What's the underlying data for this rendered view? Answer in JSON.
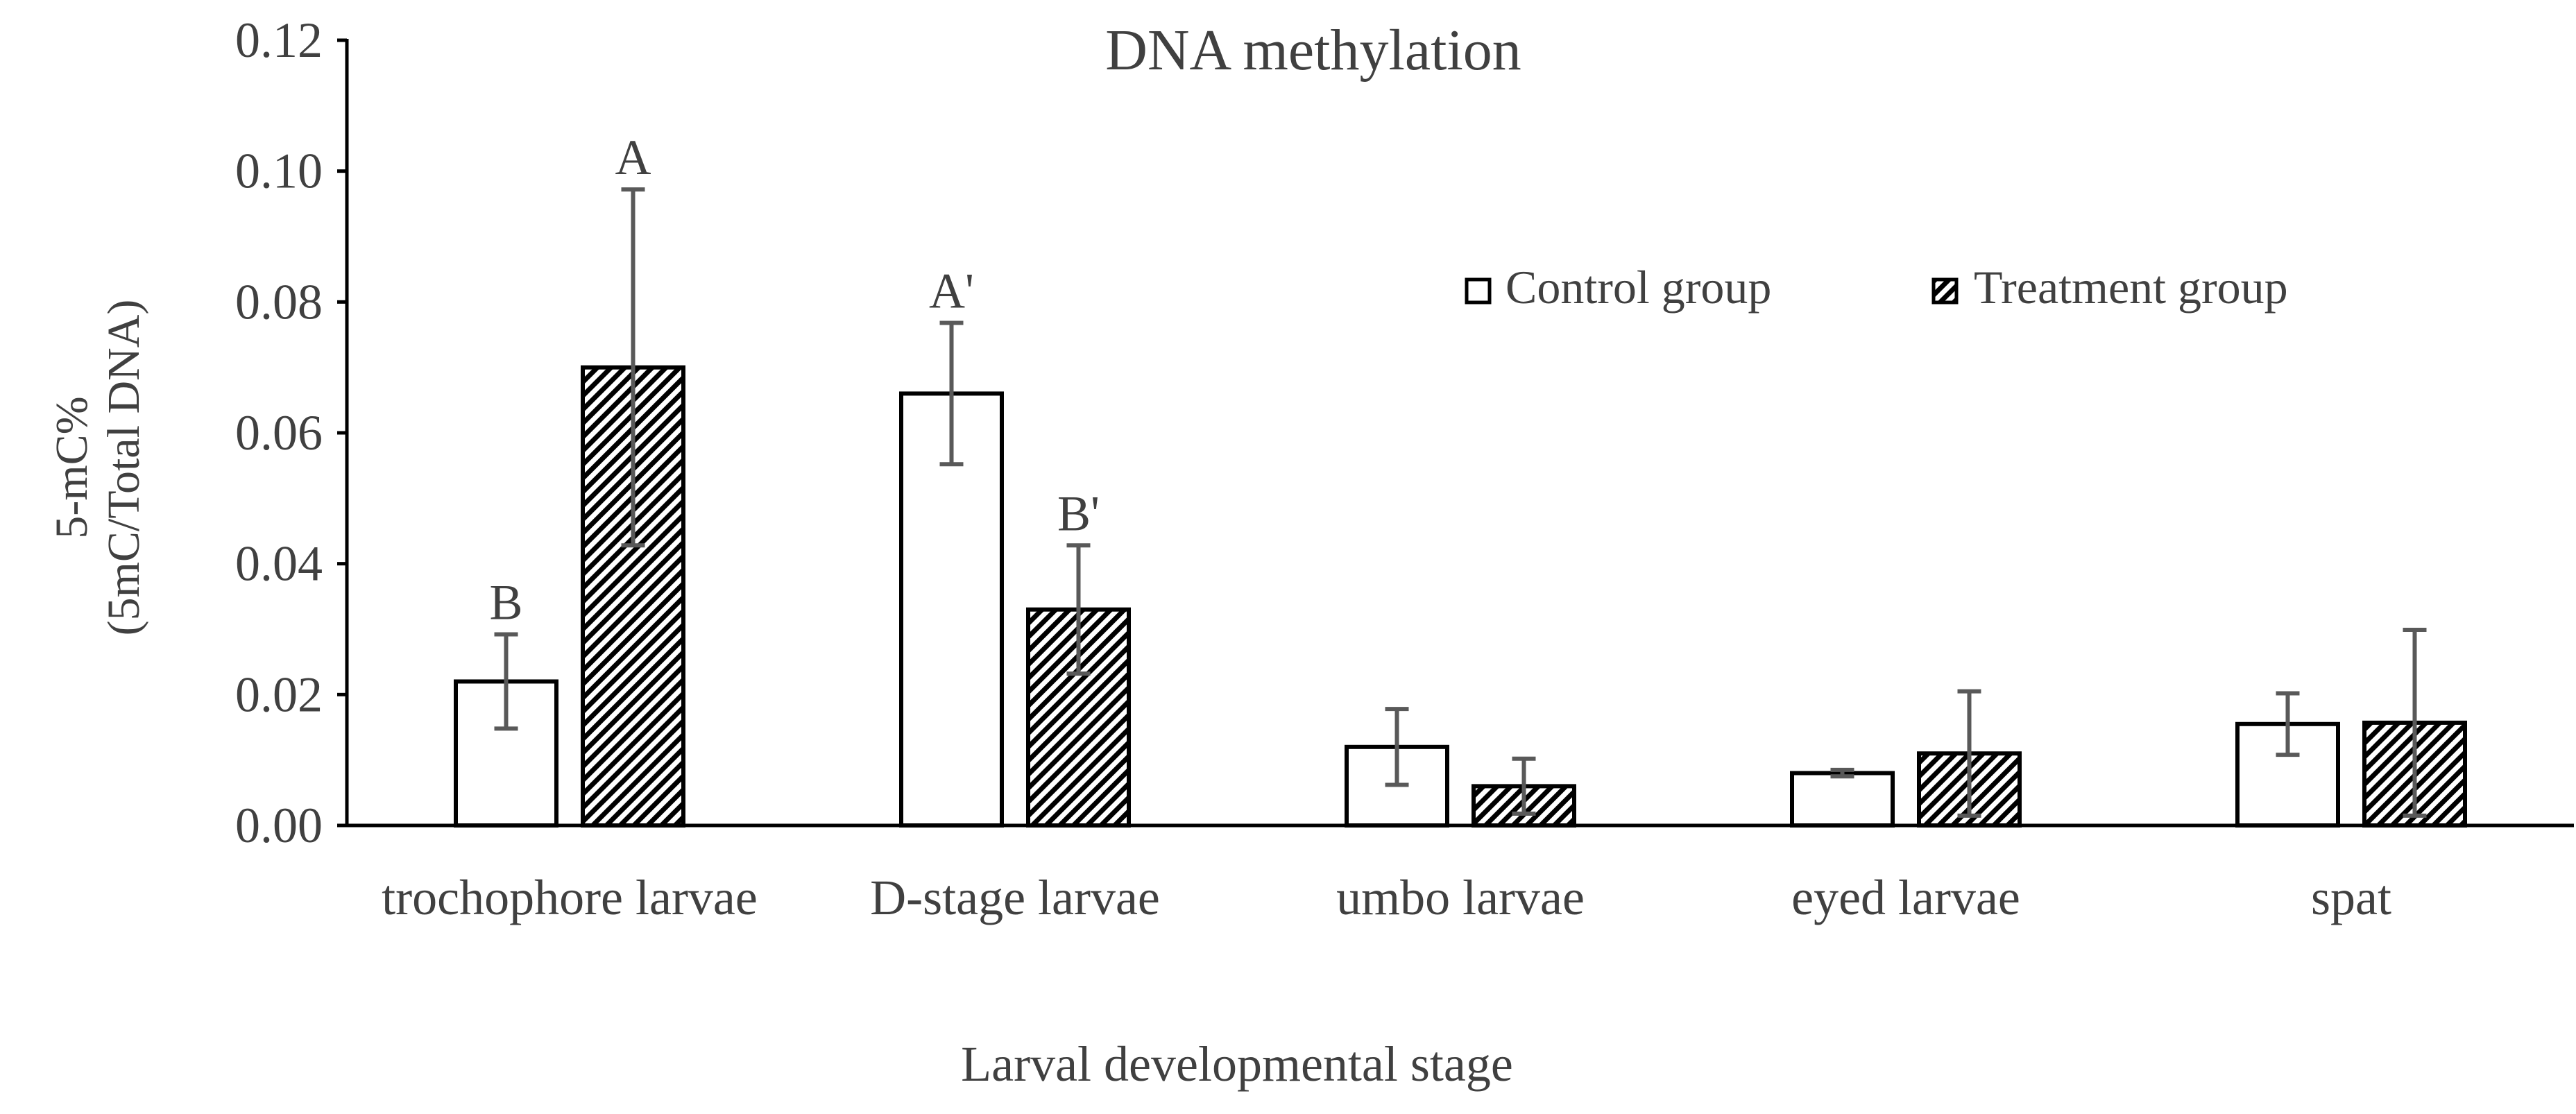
{
  "chart_data": {
    "type": "bar",
    "title": "DNA methylation",
    "xlabel": "Larval developmental stage",
    "ylabel_lines": [
      "5-mC%",
      "(5mC/Total DNA)"
    ],
    "ylim": [
      0,
      0.12
    ],
    "yticks": [
      "0.00",
      "0.02",
      "0.04",
      "0.06",
      "0.08",
      "0.10",
      "0.12"
    ],
    "grid": false,
    "legend_position": "top-right",
    "categories": [
      "trochophore larvae",
      "D-stage larvae",
      "umbo larvae",
      "eyed larvae",
      "spat"
    ],
    "series": [
      {
        "name": "Control group",
        "fill": "#ffffff",
        "values": [
          0.022,
          0.066,
          0.012,
          0.008,
          0.0155
        ],
        "errors": [
          0.0072,
          0.0108,
          0.0058,
          0.0005,
          0.0047
        ],
        "labels": [
          "B",
          "A'",
          "",
          "",
          ""
        ]
      },
      {
        "name": "Treatment group",
        "fill": "hatch",
        "values": [
          0.07,
          0.033,
          0.006,
          0.011,
          0.0157
        ],
        "errors": [
          0.0272,
          0.0098,
          0.0042,
          0.0095,
          0.0142
        ],
        "labels": [
          "A",
          "B'",
          "",
          "",
          ""
        ]
      }
    ],
    "colors": {
      "bar_stroke": "#000000",
      "axis": "#000000",
      "error_bar": "#595959",
      "text": "#404040"
    }
  }
}
